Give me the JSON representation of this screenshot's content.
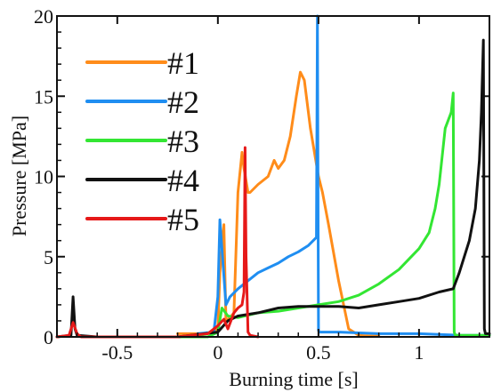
{
  "chart_data": {
    "type": "line",
    "title": "",
    "xlabel": "Burning time [s]",
    "ylabel": "Pressure [MPa]",
    "xlim": [
      -0.8,
      1.35
    ],
    "ylim": [
      0,
      20
    ],
    "grid": false,
    "legend_position": "top-left",
    "x_ticks": [
      {
        "value": -0.5,
        "label": "-0.5"
      },
      {
        "value": 0,
        "label": "0"
      },
      {
        "value": 0.5,
        "label": "0.5"
      },
      {
        "value": 1,
        "label": "1"
      }
    ],
    "y_ticks": [
      {
        "value": 0,
        "label": "0"
      },
      {
        "value": 5,
        "label": "5"
      },
      {
        "value": 10,
        "label": "10"
      },
      {
        "value": 15,
        "label": "15"
      },
      {
        "value": 20,
        "label": "20"
      }
    ],
    "series": [
      {
        "name": "#1",
        "color": "#ff8c1a",
        "x": [
          -0.2,
          -0.05,
          0.0,
          0.01,
          0.03,
          0.04,
          0.06,
          0.08,
          0.1,
          0.12,
          0.13,
          0.15,
          0.16,
          0.2,
          0.25,
          0.28,
          0.3,
          0.33,
          0.36,
          0.39,
          0.41,
          0.43,
          0.46,
          0.5,
          0.52,
          0.55,
          0.6,
          0.65,
          0.7,
          0.75,
          0.8
        ],
        "y": [
          0.2,
          0.2,
          0.5,
          4.0,
          7.0,
          1.0,
          1.2,
          1.5,
          9.0,
          11.5,
          10.5,
          9.0,
          9.0,
          9.5,
          10.0,
          11.0,
          10.5,
          11.0,
          12.5,
          15.0,
          16.5,
          16.0,
          13.0,
          10.0,
          9.0,
          7.0,
          3.5,
          0.5,
          0.1,
          0.05,
          0.05
        ]
      },
      {
        "name": "#2",
        "color": "#1f8ef1",
        "x": [
          -0.1,
          -0.02,
          0.0,
          0.01,
          0.02,
          0.04,
          0.06,
          0.1,
          0.15,
          0.2,
          0.25,
          0.3,
          0.35,
          0.4,
          0.45,
          0.49,
          0.495,
          0.5,
          0.505,
          0.52,
          0.6,
          0.8,
          1.0,
          1.2,
          1.35
        ],
        "y": [
          0.2,
          0.3,
          2.5,
          7.3,
          5.5,
          2.0,
          2.5,
          3.0,
          3.5,
          4.0,
          4.3,
          4.6,
          5.0,
          5.3,
          5.7,
          6.2,
          20.0,
          0.4,
          0.3,
          0.3,
          0.3,
          0.2,
          0.2,
          0.1,
          0.1
        ]
      },
      {
        "name": "#3",
        "color": "#33e633",
        "x": [
          -0.2,
          -0.05,
          0.0,
          0.02,
          0.05,
          0.1,
          0.2,
          0.3,
          0.4,
          0.5,
          0.6,
          0.7,
          0.8,
          0.9,
          1.0,
          1.05,
          1.08,
          1.1,
          1.13,
          1.16,
          1.17,
          1.175,
          1.18,
          1.2,
          1.3,
          1.35
        ],
        "y": [
          0.0,
          0.0,
          0.3,
          1.8,
          1.3,
          1.2,
          1.5,
          1.6,
          1.8,
          2.0,
          2.2,
          2.6,
          3.3,
          4.2,
          5.5,
          6.5,
          8.0,
          9.5,
          13.0,
          14.0,
          15.2,
          0.3,
          0.1,
          0.1,
          0.1,
          0.1
        ]
      },
      {
        "name": "#4",
        "color": "#111111",
        "x": [
          -0.8,
          -0.73,
          -0.72,
          -0.71,
          -0.7,
          -0.6,
          -0.2,
          0.0,
          0.05,
          0.1,
          0.2,
          0.3,
          0.4,
          0.5,
          0.6,
          0.7,
          0.8,
          0.9,
          1.0,
          1.1,
          1.17,
          1.2,
          1.25,
          1.28,
          1.3,
          1.31,
          1.32,
          1.325,
          1.33,
          1.35
        ],
        "y": [
          0.0,
          0.1,
          2.5,
          0.5,
          0.1,
          0.0,
          0.0,
          0.3,
          1.0,
          1.3,
          1.5,
          1.8,
          1.9,
          1.9,
          1.9,
          1.8,
          2.0,
          2.2,
          2.4,
          2.8,
          3.0,
          4.0,
          6.0,
          8.0,
          11.0,
          14.0,
          18.5,
          0.5,
          0.2,
          0.2
        ]
      },
      {
        "name": "#5",
        "color": "#e61919",
        "x": [
          -0.8,
          -0.74,
          -0.72,
          -0.7,
          -0.68,
          -0.6,
          -0.4,
          -0.2,
          -0.05,
          0.0,
          0.03,
          0.05,
          0.08,
          0.1,
          0.12,
          0.13,
          0.135,
          0.14,
          0.15,
          0.16,
          0.2
        ],
        "y": [
          0.0,
          0.1,
          0.9,
          0.2,
          0.0,
          0.0,
          0.0,
          0.0,
          0.2,
          0.7,
          1.1,
          0.5,
          1.5,
          1.8,
          2.0,
          2.8,
          11.8,
          5.0,
          0.3,
          0.1,
          0.0
        ]
      }
    ]
  }
}
